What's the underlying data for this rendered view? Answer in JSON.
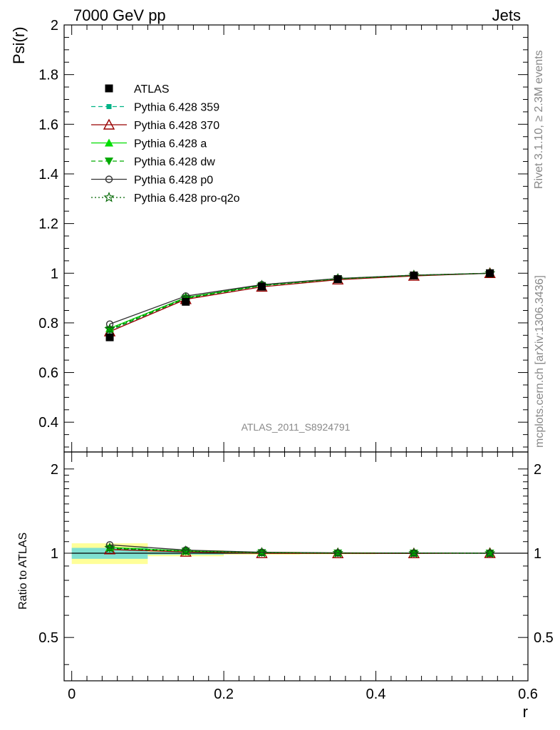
{
  "header": {
    "left": "7000 GeV pp",
    "right": "Jets"
  },
  "side_labels": {
    "rivet": "Rivet 3.1.10, ≥ 2.3M events",
    "mcplots": "mcplots.cern.ch [arXiv:1306.3436]"
  },
  "analysis_label": "ATLAS_2011_S8924791",
  "colors": {
    "atlas": "#000000",
    "p359": "#00b386",
    "p370": "#990000",
    "a": "#00dd00",
    "dw": "#00aa00",
    "p0": "#333333",
    "proq2o": "#006600",
    "band_inner": "#7fe0d0",
    "band_outer": "#ffff99"
  },
  "chart_data": [
    {
      "type": "line",
      "xlabel": "",
      "ylabel": "Psi(r)",
      "xlim": [
        -0.01,
        0.6
      ],
      "ylim": [
        0.28,
        2.0
      ],
      "yticks": [
        0.4,
        0.6,
        0.8,
        1,
        1.2,
        1.4,
        1.6,
        1.8,
        2
      ],
      "ytick_labels": [
        "0.4",
        "0.6",
        "0.8",
        "1",
        "1.2",
        "1.4",
        "1.6",
        "1.8",
        "2"
      ],
      "legend_position": "top-left",
      "x": [
        0.05,
        0.15,
        0.25,
        0.35,
        0.45,
        0.55
      ],
      "series": [
        {
          "name": "ATLAS",
          "marker": "square",
          "line": "none",
          "color_key": "atlas",
          "values": [
            0.742,
            0.885,
            0.946,
            0.976,
            0.991,
            1.0
          ]
        },
        {
          "name": "Pythia 6.428 359",
          "marker": "smallsquare",
          "line": "dashed",
          "color_key": "p359",
          "values": [
            0.77,
            0.898,
            0.95,
            0.977,
            0.991,
            1.0
          ]
        },
        {
          "name": "Pythia 6.428 370",
          "marker": "triangle-open",
          "line": "solid",
          "color_key": "p370",
          "values": [
            0.765,
            0.895,
            0.945,
            0.974,
            0.989,
            1.0
          ]
        },
        {
          "name": "Pythia 6.428 a",
          "marker": "triangle",
          "line": "solid",
          "color_key": "a",
          "values": [
            0.778,
            0.902,
            0.952,
            0.978,
            0.992,
            1.0
          ]
        },
        {
          "name": "Pythia 6.428 dw",
          "marker": "triangle-down",
          "line": "dashed",
          "color_key": "dw",
          "values": [
            0.772,
            0.899,
            0.95,
            0.977,
            0.991,
            1.0
          ]
        },
        {
          "name": "Pythia 6.428 p0",
          "marker": "circle-open",
          "line": "solid",
          "color_key": "p0",
          "values": [
            0.795,
            0.908,
            0.954,
            0.979,
            0.992,
            1.0
          ]
        },
        {
          "name": "Pythia 6.428 pro-q2o",
          "marker": "star",
          "line": "dotted",
          "color_key": "proq2o",
          "values": [
            0.775,
            0.901,
            0.951,
            0.978,
            0.992,
            1.0
          ]
        }
      ]
    },
    {
      "type": "line",
      "xlabel": "r",
      "ylabel": "Ratio to ATLAS",
      "xlim": [
        -0.01,
        0.6
      ],
      "ylim": [
        0.35,
        2.3
      ],
      "yscale": "log",
      "yticks": [
        0.5,
        1,
        2
      ],
      "ytick_labels": [
        "0.5",
        "1",
        "2"
      ],
      "xticks": [
        0,
        0.2,
        0.4,
        0.6
      ],
      "xtick_labels": [
        "0",
        "0.2",
        "0.4",
        "0.6"
      ],
      "x": [
        0.05,
        0.15,
        0.25,
        0.35,
        0.45,
        0.55
      ],
      "bins": [
        [
          0,
          0.1
        ],
        [
          0.1,
          0.2
        ],
        [
          0.2,
          0.3
        ],
        [
          0.3,
          0.4
        ],
        [
          0.4,
          0.5
        ],
        [
          0.5,
          0.6
        ]
      ],
      "band_inner": [
        0.045,
        0.012,
        0.006,
        0.004,
        0.003,
        0.002
      ],
      "band_outer": [
        0.085,
        0.025,
        0.012,
        0.008,
        0.005,
        0.003
      ],
      "series": [
        {
          "name": "Pythia 6.428 359",
          "color_key": "p359",
          "marker": "smallsquare",
          "line": "dashed",
          "values": [
            1.038,
            1.015,
            1.004,
            1.001,
            1.0,
            1.0
          ]
        },
        {
          "name": "Pythia 6.428 370",
          "color_key": "p370",
          "marker": "triangle-open",
          "line": "solid",
          "values": [
            1.031,
            1.011,
            0.999,
            0.998,
            0.998,
            1.0
          ]
        },
        {
          "name": "Pythia 6.428 a",
          "color_key": "a",
          "marker": "triangle",
          "line": "solid",
          "values": [
            1.049,
            1.019,
            1.006,
            1.002,
            1.001,
            1.0
          ]
        },
        {
          "name": "Pythia 6.428 dw",
          "color_key": "dw",
          "marker": "triangle-down",
          "line": "dashed",
          "values": [
            1.04,
            1.016,
            1.004,
            1.001,
            1.0,
            1.0
          ]
        },
        {
          "name": "Pythia 6.428 p0",
          "color_key": "p0",
          "marker": "circle-open",
          "line": "solid",
          "values": [
            1.071,
            1.026,
            1.008,
            1.003,
            1.001,
            1.0
          ]
        },
        {
          "name": "Pythia 6.428 pro-q2o",
          "color_key": "proq2o",
          "marker": "star",
          "line": "dotted",
          "values": [
            1.044,
            1.018,
            1.005,
            1.002,
            1.001,
            1.0
          ]
        }
      ]
    }
  ]
}
